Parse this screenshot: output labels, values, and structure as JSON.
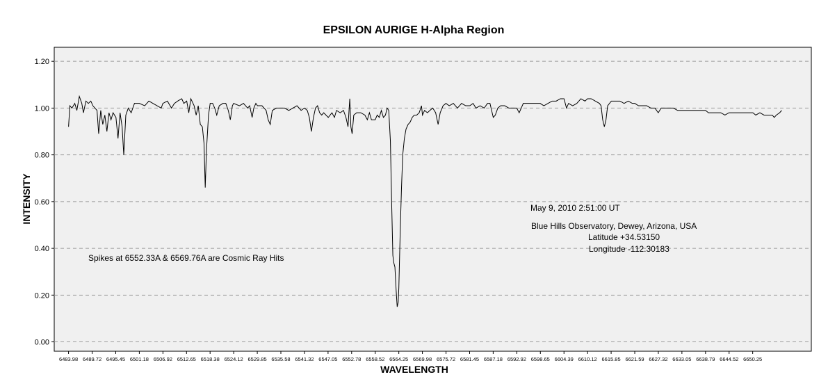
{
  "chart_data": {
    "type": "line",
    "title": "EPSILON AURIGE  H-Alpha Region",
    "xlabel": "WAVELENGTH",
    "ylabel": "INTENSITY",
    "ylim": [
      -0.04,
      1.26
    ],
    "xlim": [
      6480.5,
      6664.5
    ],
    "yticks": [
      "0.00",
      "0.20",
      "0.40",
      "0.60",
      "0.80",
      "1.00",
      "1.20"
    ],
    "xticks": [
      "6483.98",
      "6489.72",
      "6495.45",
      "6501.18",
      "6506.92",
      "6512.65",
      "6518.38",
      "6524.12",
      "6529.85",
      "6535.58",
      "6541.32",
      "6547.05",
      "6552.78",
      "6558.52",
      "6564.25",
      "6569.98",
      "6575.72",
      "6581.45",
      "6587.18",
      "6592.92",
      "6598.65",
      "6604.39",
      "6610.12",
      "6615.85",
      "6621.59",
      "6627.32",
      "6633.05",
      "6638.79",
      "6644.52",
      "6650.25"
    ],
    "grid": "horizontal-dashed",
    "background": "#f0f0f0",
    "line_color": "#000000",
    "series": [
      {
        "points": [
          [
            6483.98,
            0.92
          ],
          [
            6484.3,
            1.01
          ],
          [
            6484.8,
            1.0
          ],
          [
            6485.5,
            1.02
          ],
          [
            6486.0,
            0.99
          ],
          [
            6486.6,
            1.05
          ],
          [
            6487.2,
            1.02
          ],
          [
            6487.6,
            0.98
          ],
          [
            6488.2,
            1.03
          ],
          [
            6488.8,
            1.02
          ],
          [
            6489.4,
            1.03
          ],
          [
            6489.9,
            1.01
          ],
          [
            6490.4,
            1.0
          ],
          [
            6490.9,
            0.99
          ],
          [
            6491.3,
            0.89
          ],
          [
            6491.8,
            0.99
          ],
          [
            6492.3,
            0.93
          ],
          [
            6492.8,
            0.97
          ],
          [
            6493.3,
            0.9
          ],
          [
            6493.8,
            0.98
          ],
          [
            6494.3,
            0.95
          ],
          [
            6494.8,
            0.98
          ],
          [
            6495.5,
            0.96
          ],
          [
            6496.0,
            0.87
          ],
          [
            6496.5,
            0.98
          ],
          [
            6497.0,
            0.92
          ],
          [
            6497.4,
            0.8
          ],
          [
            6497.9,
            0.97
          ],
          [
            6498.5,
            1.0
          ],
          [
            6499.2,
            0.98
          ],
          [
            6500.0,
            1.02
          ],
          [
            6501.2,
            1.02
          ],
          [
            6502.5,
            1.01
          ],
          [
            6503.5,
            1.03
          ],
          [
            6504.5,
            1.02
          ],
          [
            6505.5,
            1.01
          ],
          [
            6506.5,
            1.0
          ],
          [
            6506.9,
            1.02
          ],
          [
            6508.0,
            1.03
          ],
          [
            6509.0,
            1.0
          ],
          [
            6509.7,
            1.02
          ],
          [
            6510.5,
            1.03
          ],
          [
            6511.5,
            1.04
          ],
          [
            6512.0,
            1.02
          ],
          [
            6512.7,
            1.03
          ],
          [
            6513.2,
            0.98
          ],
          [
            6513.7,
            1.04
          ],
          [
            6514.5,
            1.01
          ],
          [
            6515.0,
            0.97
          ],
          [
            6515.5,
            1.01
          ],
          [
            6516.0,
            0.93
          ],
          [
            6516.5,
            0.92
          ],
          [
            6516.9,
            0.85
          ],
          [
            6517.2,
            0.66
          ],
          [
            6517.5,
            0.82
          ],
          [
            6518.0,
            0.97
          ],
          [
            6518.4,
            1.02
          ],
          [
            6519.0,
            1.02
          ],
          [
            6519.5,
            1.0
          ],
          [
            6520.0,
            0.97
          ],
          [
            6520.6,
            1.01
          ],
          [
            6521.5,
            1.02
          ],
          [
            6522.2,
            1.02
          ],
          [
            6522.8,
            0.99
          ],
          [
            6523.3,
            0.95
          ],
          [
            6523.8,
            1.01
          ],
          [
            6524.1,
            1.02
          ],
          [
            6525.5,
            1.01
          ],
          [
            6526.5,
            1.02
          ],
          [
            6527.5,
            1.0
          ],
          [
            6528.0,
            1.01
          ],
          [
            6528.6,
            0.96
          ],
          [
            6529.0,
            1.0
          ],
          [
            6529.5,
            1.02
          ],
          [
            6529.9,
            1.01
          ],
          [
            6531.0,
            1.01
          ],
          [
            6532.0,
            0.99
          ],
          [
            6532.5,
            0.95
          ],
          [
            6533.0,
            0.93
          ],
          [
            6533.5,
            0.99
          ],
          [
            6534.5,
            1.0
          ],
          [
            6535.6,
            1.0
          ],
          [
            6536.5,
            1.0
          ],
          [
            6537.5,
            0.99
          ],
          [
            6538.5,
            1.0
          ],
          [
            6539.5,
            1.01
          ],
          [
            6540.5,
            0.99
          ],
          [
            6541.3,
            1.0
          ],
          [
            6542.0,
            0.99
          ],
          [
            6542.5,
            0.96
          ],
          [
            6543.0,
            0.9
          ],
          [
            6543.5,
            0.96
          ],
          [
            6544.0,
            1.0
          ],
          [
            6544.5,
            1.01
          ],
          [
            6545.0,
            0.98
          ],
          [
            6545.5,
            0.97
          ],
          [
            6546.0,
            0.98
          ],
          [
            6547.1,
            0.96
          ],
          [
            6548.0,
            0.98
          ],
          [
            6548.6,
            0.96
          ],
          [
            6549.1,
            0.99
          ],
          [
            6550.0,
            0.98
          ],
          [
            6550.8,
            0.99
          ],
          [
            6551.4,
            0.96
          ],
          [
            6551.9,
            0.92
          ],
          [
            6552.33,
            1.04
          ],
          [
            6552.6,
            0.92
          ],
          [
            6552.9,
            0.89
          ],
          [
            6553.3,
            0.97
          ],
          [
            6554.0,
            0.98
          ],
          [
            6555.0,
            0.98
          ],
          [
            6556.0,
            0.97
          ],
          [
            6556.6,
            0.95
          ],
          [
            6557.1,
            0.98
          ],
          [
            6557.6,
            0.95
          ],
          [
            6558.5,
            0.95
          ],
          [
            6559.0,
            0.97
          ],
          [
            6559.5,
            0.96
          ],
          [
            6560.0,
            0.99
          ],
          [
            6560.5,
            0.96
          ],
          [
            6561.0,
            0.97
          ],
          [
            6561.4,
            1.0
          ],
          [
            6561.8,
            0.99
          ],
          [
            6562.2,
            0.86
          ],
          [
            6562.5,
            0.6
          ],
          [
            6562.8,
            0.37
          ],
          [
            6563.0,
            0.34
          ],
          [
            6563.3,
            0.32
          ],
          [
            6563.6,
            0.22
          ],
          [
            6563.85,
            0.15
          ],
          [
            6564.1,
            0.17
          ],
          [
            6564.25,
            0.23
          ],
          [
            6564.6,
            0.48
          ],
          [
            6564.9,
            0.66
          ],
          [
            6565.2,
            0.8
          ],
          [
            6565.6,
            0.87
          ],
          [
            6566.0,
            0.91
          ],
          [
            6566.5,
            0.93
          ],
          [
            6567.0,
            0.94
          ],
          [
            6567.5,
            0.96
          ],
          [
            6568.0,
            0.97
          ],
          [
            6568.6,
            0.97
          ],
          [
            6569.2,
            0.98
          ],
          [
            6569.76,
            1.01
          ],
          [
            6570.0,
            0.97
          ],
          [
            6570.5,
            0.99
          ],
          [
            6571.2,
            0.98
          ],
          [
            6571.8,
            0.99
          ],
          [
            6572.5,
            1.0
          ],
          [
            6573.2,
            0.98
          ],
          [
            6573.8,
            0.93
          ],
          [
            6574.3,
            0.98
          ],
          [
            6575.0,
            1.01
          ],
          [
            6575.7,
            1.02
          ],
          [
            6576.5,
            1.01
          ],
          [
            6577.5,
            1.02
          ],
          [
            6578.5,
            1.0
          ],
          [
            6579.5,
            1.02
          ],
          [
            6580.5,
            1.01
          ],
          [
            6581.5,
            1.01
          ],
          [
            6582.3,
            1.02
          ],
          [
            6583.0,
            1.0
          ],
          [
            6584.0,
            1.01
          ],
          [
            6585.0,
            1.0
          ],
          [
            6585.8,
            1.02
          ],
          [
            6586.4,
            1.02
          ],
          [
            6587.2,
            0.96
          ],
          [
            6587.7,
            0.97
          ],
          [
            6588.3,
            1.0
          ],
          [
            6589.0,
            1.01
          ],
          [
            6590.0,
            1.01
          ],
          [
            6591.0,
            1.0
          ],
          [
            6592.0,
            1.0
          ],
          [
            6592.9,
            1.0
          ],
          [
            6593.5,
            0.98
          ],
          [
            6594.5,
            1.02
          ],
          [
            6595.5,
            1.02
          ],
          [
            6596.5,
            1.02
          ],
          [
            6597.5,
            1.02
          ],
          [
            6598.6,
            1.02
          ],
          [
            6599.5,
            1.01
          ],
          [
            6600.5,
            1.02
          ],
          [
            6601.5,
            1.03
          ],
          [
            6602.5,
            1.03
          ],
          [
            6603.5,
            1.04
          ],
          [
            6604.4,
            1.04
          ],
          [
            6605.0,
            1.0
          ],
          [
            6605.5,
            1.02
          ],
          [
            6606.5,
            1.01
          ],
          [
            6607.5,
            1.02
          ],
          [
            6608.5,
            1.04
          ],
          [
            6609.5,
            1.03
          ],
          [
            6610.1,
            1.04
          ],
          [
            6611.0,
            1.04
          ],
          [
            6612.0,
            1.03
          ],
          [
            6613.0,
            1.02
          ],
          [
            6613.4,
            1.01
          ],
          [
            6613.8,
            0.95
          ],
          [
            6614.2,
            0.92
          ],
          [
            6614.6,
            0.95
          ],
          [
            6615.0,
            1.01
          ],
          [
            6615.9,
            1.03
          ],
          [
            6617.0,
            1.03
          ],
          [
            6618.0,
            1.03
          ],
          [
            6619.0,
            1.02
          ],
          [
            6620.0,
            1.03
          ],
          [
            6621.0,
            1.02
          ],
          [
            6621.6,
            1.02
          ],
          [
            6622.5,
            1.01
          ],
          [
            6623.5,
            1.01
          ],
          [
            6624.5,
            1.01
          ],
          [
            6625.5,
            1.0
          ],
          [
            6626.5,
            1.0
          ],
          [
            6627.3,
            0.98
          ],
          [
            6628.0,
            1.0
          ],
          [
            6629.0,
            1.0
          ],
          [
            6630.0,
            1.0
          ],
          [
            6631.0,
            1.0
          ],
          [
            6632.0,
            0.99
          ],
          [
            6633.1,
            0.99
          ],
          [
            6634.0,
            0.99
          ],
          [
            6635.0,
            0.99
          ],
          [
            6636.0,
            0.99
          ],
          [
            6637.0,
            0.99
          ],
          [
            6638.0,
            0.99
          ],
          [
            6638.8,
            0.99
          ],
          [
            6639.5,
            0.98
          ],
          [
            6640.5,
            0.98
          ],
          [
            6641.5,
            0.98
          ],
          [
            6642.5,
            0.98
          ],
          [
            6643.5,
            0.97
          ],
          [
            6644.5,
            0.98
          ],
          [
            6645.5,
            0.98
          ],
          [
            6646.5,
            0.98
          ],
          [
            6647.5,
            0.98
          ],
          [
            6648.5,
            0.98
          ],
          [
            6649.5,
            0.98
          ],
          [
            6650.3,
            0.98
          ],
          [
            6651.0,
            0.97
          ],
          [
            6652.0,
            0.98
          ],
          [
            6653.0,
            0.97
          ],
          [
            6654.0,
            0.97
          ],
          [
            6655.0,
            0.97
          ],
          [
            6655.5,
            0.96
          ],
          [
            6656.0,
            0.97
          ],
          [
            6656.8,
            0.98
          ],
          [
            6657.3,
            0.99
          ]
        ]
      }
    ],
    "annotations": {
      "cosmic": "Spikes at 6552.33A & 6569.76A are Cosmic Ray Hits",
      "date": "May 9, 2010  2:51:00 UT",
      "observatory": "Blue Hills Observatory, Dewey, Arizona, USA",
      "latitude": "Latitude  +34.53150",
      "longitude": "Longitude  -112.30183"
    }
  }
}
